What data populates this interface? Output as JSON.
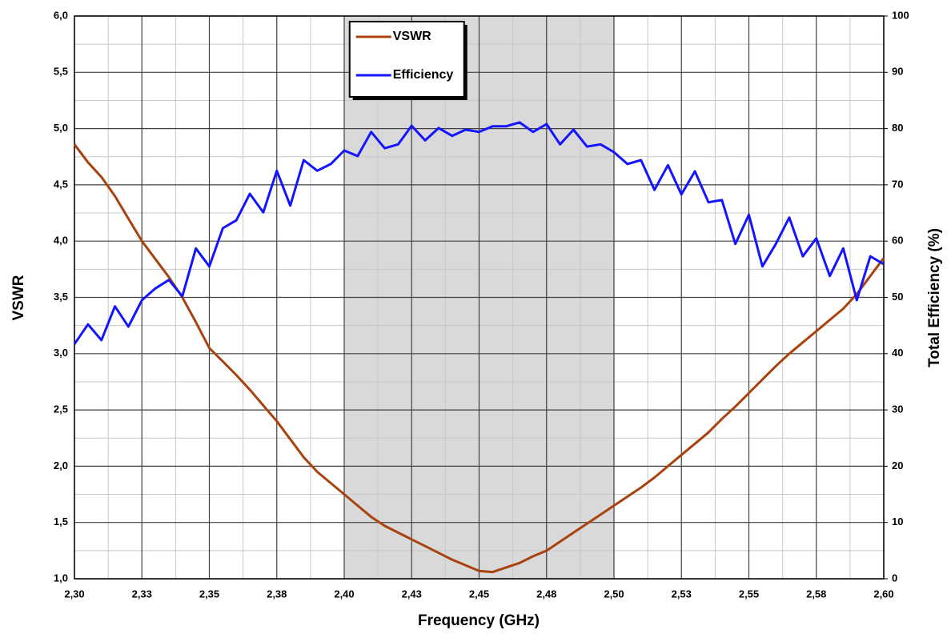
{
  "chart_data": {
    "type": "line",
    "x_label": "Frequency (GHz)",
    "y_label": "VSWR",
    "y2_label": "Total Efficiency (%)",
    "x": [
      2.3,
      2.305,
      2.31,
      2.315,
      2.32,
      2.325,
      2.33,
      2.335,
      2.34,
      2.345,
      2.35,
      2.355,
      2.36,
      2.365,
      2.37,
      2.375,
      2.38,
      2.385,
      2.39,
      2.395,
      2.4,
      2.405,
      2.41,
      2.415,
      2.42,
      2.425,
      2.43,
      2.435,
      2.44,
      2.445,
      2.45,
      2.455,
      2.46,
      2.465,
      2.47,
      2.475,
      2.48,
      2.485,
      2.49,
      2.495,
      2.5,
      2.505,
      2.51,
      2.515,
      2.52,
      2.525,
      2.53,
      2.535,
      2.54,
      2.545,
      2.55,
      2.555,
      2.56,
      2.565,
      2.57,
      2.575,
      2.58,
      2.585,
      2.59,
      2.595,
      2.6
    ],
    "series": [
      {
        "name": "VSWR",
        "color": "#a8420f",
        "axis": "y",
        "values": [
          4.86,
          4.7,
          4.57,
          4.4,
          4.2,
          4.0,
          3.84,
          3.68,
          3.5,
          3.28,
          3.05,
          2.93,
          2.81,
          2.68,
          2.54,
          2.4,
          2.24,
          2.08,
          1.95,
          1.85,
          1.75,
          1.65,
          1.55,
          1.47,
          1.41,
          1.35,
          1.29,
          1.23,
          1.17,
          1.12,
          1.07,
          1.06,
          1.1,
          1.14,
          1.2,
          1.25,
          1.33,
          1.41,
          1.49,
          1.57,
          1.65,
          1.73,
          1.81,
          1.9,
          2.0,
          2.1,
          2.2,
          2.3,
          2.42,
          2.53,
          2.65,
          2.77,
          2.89,
          3.0,
          3.1,
          3.2,
          3.3,
          3.4,
          3.53,
          3.69,
          3.85
        ]
      },
      {
        "name": "Efficiency",
        "color": "#1414ff",
        "axis": "y2",
        "values": [
          41.7,
          45.2,
          42.4,
          48.4,
          44.8,
          49.5,
          51.6,
          53.1,
          50.2,
          58.7,
          55.5,
          62.3,
          63.7,
          68.4,
          65.1,
          72.5,
          66.3,
          74.4,
          72.5,
          73.7,
          76.1,
          75.1,
          79.4,
          76.5,
          77.2,
          80.5,
          77.9,
          80.1,
          78.7,
          79.8,
          79.4,
          80.4,
          80.4,
          81.1,
          79.4,
          80.8,
          77.2,
          79.8,
          76.8,
          77.2,
          75.8,
          73.7,
          74.4,
          69.1,
          73.5,
          68.3,
          72.4,
          66.9,
          67.3,
          59.5,
          64.7,
          55.5,
          59.5,
          64.2,
          57.3,
          60.5,
          53.8,
          58.7,
          49.5,
          57.3,
          55.9
        ]
      }
    ],
    "xlim": [
      2.3,
      2.6
    ],
    "xticks": [
      {
        "value": 2.3,
        "label": "2,30"
      },
      {
        "value": 2.325,
        "label": "2,33"
      },
      {
        "value": 2.35,
        "label": "2,35"
      },
      {
        "value": 2.375,
        "label": "2,38"
      },
      {
        "value": 2.4,
        "label": "2,40"
      },
      {
        "value": 2.425,
        "label": "2,43"
      },
      {
        "value": 2.45,
        "label": "2,45"
      },
      {
        "value": 2.475,
        "label": "2,48"
      },
      {
        "value": 2.5,
        "label": "2,50"
      },
      {
        "value": 2.525,
        "label": "2,53"
      },
      {
        "value": 2.55,
        "label": "2,55"
      },
      {
        "value": 2.575,
        "label": "2,58"
      },
      {
        "value": 2.6,
        "label": "2,60"
      }
    ],
    "ylim": [
      1,
      6
    ],
    "yticks": [
      {
        "value": 1,
        "label": "1,0"
      },
      {
        "value": 1.5,
        "label": "1,5"
      },
      {
        "value": 2,
        "label": "2,0"
      },
      {
        "value": 2.5,
        "label": "2,5"
      },
      {
        "value": 3,
        "label": "3,0"
      },
      {
        "value": 3.5,
        "label": "3,5"
      },
      {
        "value": 4,
        "label": "4,0"
      },
      {
        "value": 4.5,
        "label": "4,5"
      },
      {
        "value": 5,
        "label": "5,0"
      },
      {
        "value": 5.5,
        "label": "5,5"
      },
      {
        "value": 6,
        "label": "6,0"
      }
    ],
    "y2lim": [
      0,
      100
    ],
    "y2ticks": [
      0,
      10,
      20,
      30,
      40,
      50,
      60,
      70,
      80,
      90,
      100
    ],
    "grid": true,
    "minor_grid": true,
    "shaded_band": {
      "range": [
        2.4,
        2.5
      ],
      "color": "#d9d9d9"
    },
    "legend": "top-center"
  }
}
